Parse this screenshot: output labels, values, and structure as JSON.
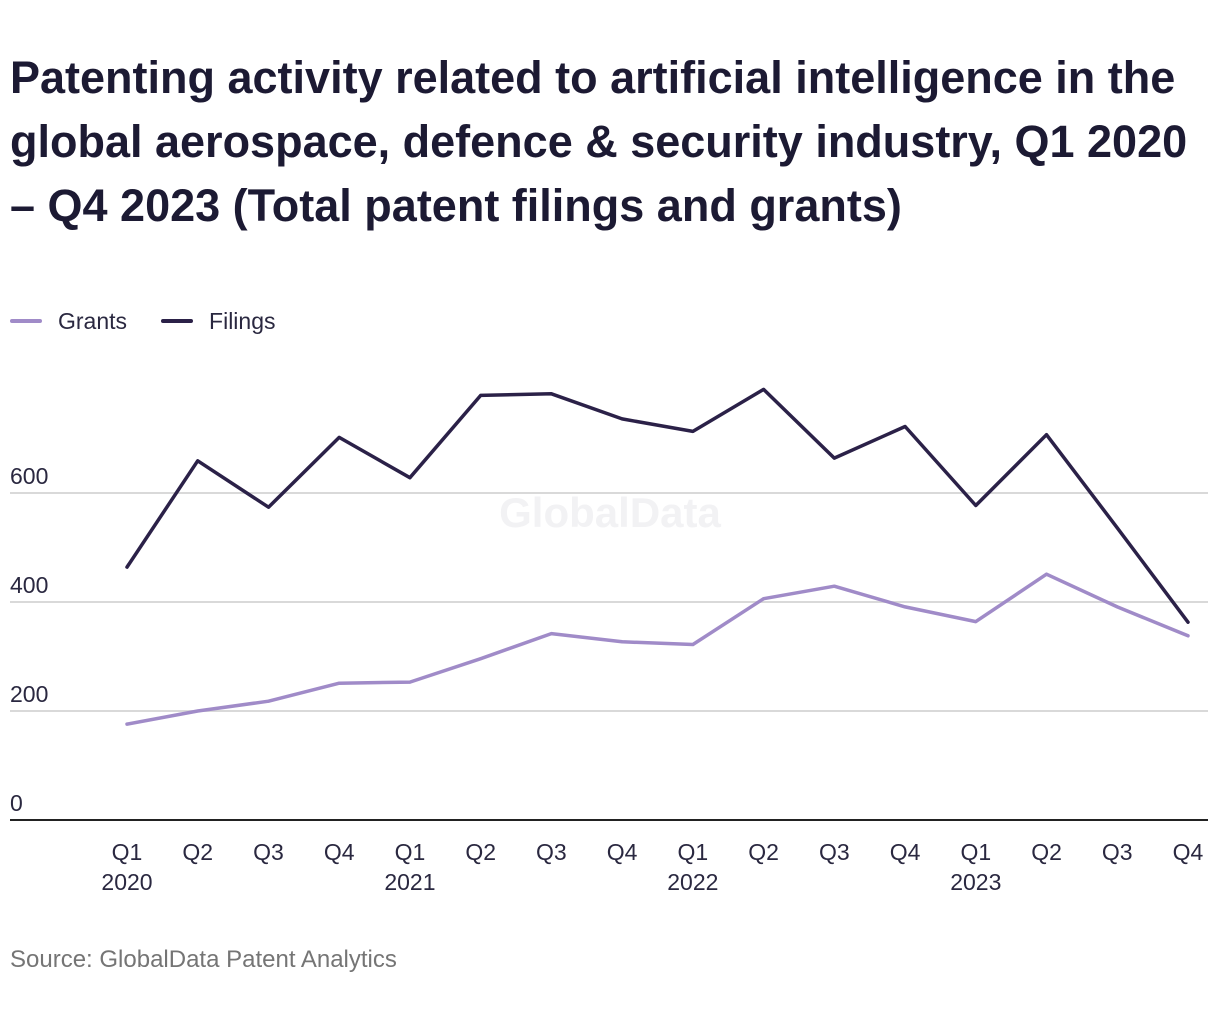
{
  "title": "Patenting activity related to artificial intelligence in the global aerospace, defence & security industry, Q1 2020 – Q4 2023 (Total patent filings and grants)",
  "source": "Source: GlobalData Patent Analytics",
  "watermark": "GlobalData",
  "colors": {
    "grants": "#a08bc8",
    "filings": "#2b2148",
    "grid": "#d9d9d9",
    "axis": "#222222",
    "text": "#2a2840"
  },
  "chart_data": {
    "type": "line",
    "categories": [
      "Q1 2020",
      "Q2 2020",
      "Q3 2020",
      "Q4 2020",
      "Q1 2021",
      "Q2 2021",
      "Q3 2021",
      "Q4 2021",
      "Q1 2022",
      "Q2 2022",
      "Q3 2022",
      "Q4 2022",
      "Q1 2023",
      "Q2 2023",
      "Q3 2023",
      "Q4 2023"
    ],
    "x_tick_labels": [
      {
        "quarter": "Q1",
        "year": "2020"
      },
      {
        "quarter": "Q2",
        "year": ""
      },
      {
        "quarter": "Q3",
        "year": ""
      },
      {
        "quarter": "Q4",
        "year": ""
      },
      {
        "quarter": "Q1",
        "year": "2021"
      },
      {
        "quarter": "Q2",
        "year": ""
      },
      {
        "quarter": "Q3",
        "year": ""
      },
      {
        "quarter": "Q4",
        "year": ""
      },
      {
        "quarter": "Q1",
        "year": "2022"
      },
      {
        "quarter": "Q2",
        "year": ""
      },
      {
        "quarter": "Q3",
        "year": ""
      },
      {
        "quarter": "Q4",
        "year": ""
      },
      {
        "quarter": "Q1",
        "year": "2023"
      },
      {
        "quarter": "Q2",
        "year": ""
      },
      {
        "quarter": "Q3",
        "year": ""
      },
      {
        "quarter": "Q4",
        "year": ""
      }
    ],
    "series": [
      {
        "name": "Grants",
        "values": [
          176,
          200,
          218,
          251,
          253,
          296,
          342,
          327,
          322,
          406,
          429,
          391,
          364,
          451,
          391,
          338
        ]
      },
      {
        "name": "Filings",
        "values": [
          464,
          659,
          574,
          702,
          628,
          779,
          782,
          736,
          713,
          790,
          664,
          722,
          577,
          707,
          536,
          363
        ]
      }
    ],
    "y_ticks": [
      0,
      200,
      400,
      600
    ],
    "ylim": [
      0,
      800
    ],
    "grid": true,
    "legend_position": "top-left"
  }
}
